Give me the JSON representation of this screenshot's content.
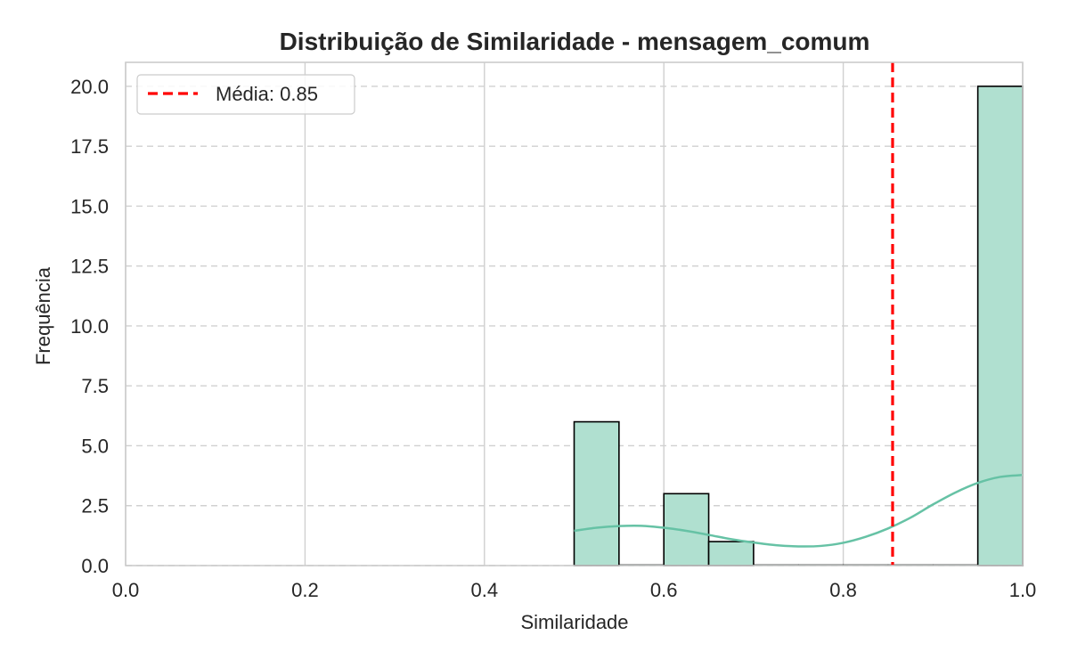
{
  "chart_data": {
    "type": "bar",
    "title": "Distribuição de Similaridade - mensagem_comum",
    "xlabel": "Similaridade",
    "ylabel": "Frequência",
    "xlim": [
      0.0,
      1.0
    ],
    "ylim": [
      0.0,
      21.0
    ],
    "x_ticks": [
      0.0,
      0.2,
      0.4,
      0.6,
      0.8,
      1.0
    ],
    "x_tick_labels": [
      "0.0",
      "0.2",
      "0.4",
      "0.6",
      "0.8",
      "1.0"
    ],
    "y_ticks": [
      0.0,
      2.5,
      5.0,
      7.5,
      10.0,
      12.5,
      15.0,
      17.5,
      20.0
    ],
    "y_tick_labels": [
      "0.0",
      "2.5",
      "5.0",
      "7.5",
      "10.0",
      "12.5",
      "15.0",
      "17.5",
      "20.0"
    ],
    "grid": true,
    "bins": [
      {
        "x0": 0.5,
        "x1": 0.55,
        "count": 6
      },
      {
        "x0": 0.55,
        "x1": 0.6,
        "count": 0
      },
      {
        "x0": 0.6,
        "x1": 0.65,
        "count": 3
      },
      {
        "x0": 0.65,
        "x1": 0.7,
        "count": 1
      },
      {
        "x0": 0.7,
        "x1": 0.75,
        "count": 0
      },
      {
        "x0": 0.75,
        "x1": 0.8,
        "count": 0
      },
      {
        "x0": 0.8,
        "x1": 0.85,
        "count": 0
      },
      {
        "x0": 0.85,
        "x1": 0.9,
        "count": 0
      },
      {
        "x0": 0.9,
        "x1": 0.95,
        "count": 0
      },
      {
        "x0": 0.95,
        "x1": 1.0,
        "count": 20
      }
    ],
    "kde": {
      "x": [
        0.5,
        0.525,
        0.55,
        0.575,
        0.6,
        0.625,
        0.65,
        0.675,
        0.7,
        0.725,
        0.75,
        0.775,
        0.8,
        0.825,
        0.85,
        0.875,
        0.9,
        0.925,
        0.95,
        0.975,
        1.0
      ],
      "y": [
        1.45,
        1.58,
        1.65,
        1.66,
        1.58,
        1.45,
        1.28,
        1.1,
        0.96,
        0.85,
        0.8,
        0.82,
        0.95,
        1.2,
        1.55,
        2.0,
        2.55,
        3.05,
        3.45,
        3.7,
        3.78
      ]
    },
    "mean_line": {
      "x": 0.855,
      "label": "Média: 0.85",
      "color": "#ff0000"
    },
    "bar_fill": "#b0e0d0",
    "bar_edge": "#000000",
    "kde_color": "#66c2a5",
    "legend_position": "top-left"
  }
}
